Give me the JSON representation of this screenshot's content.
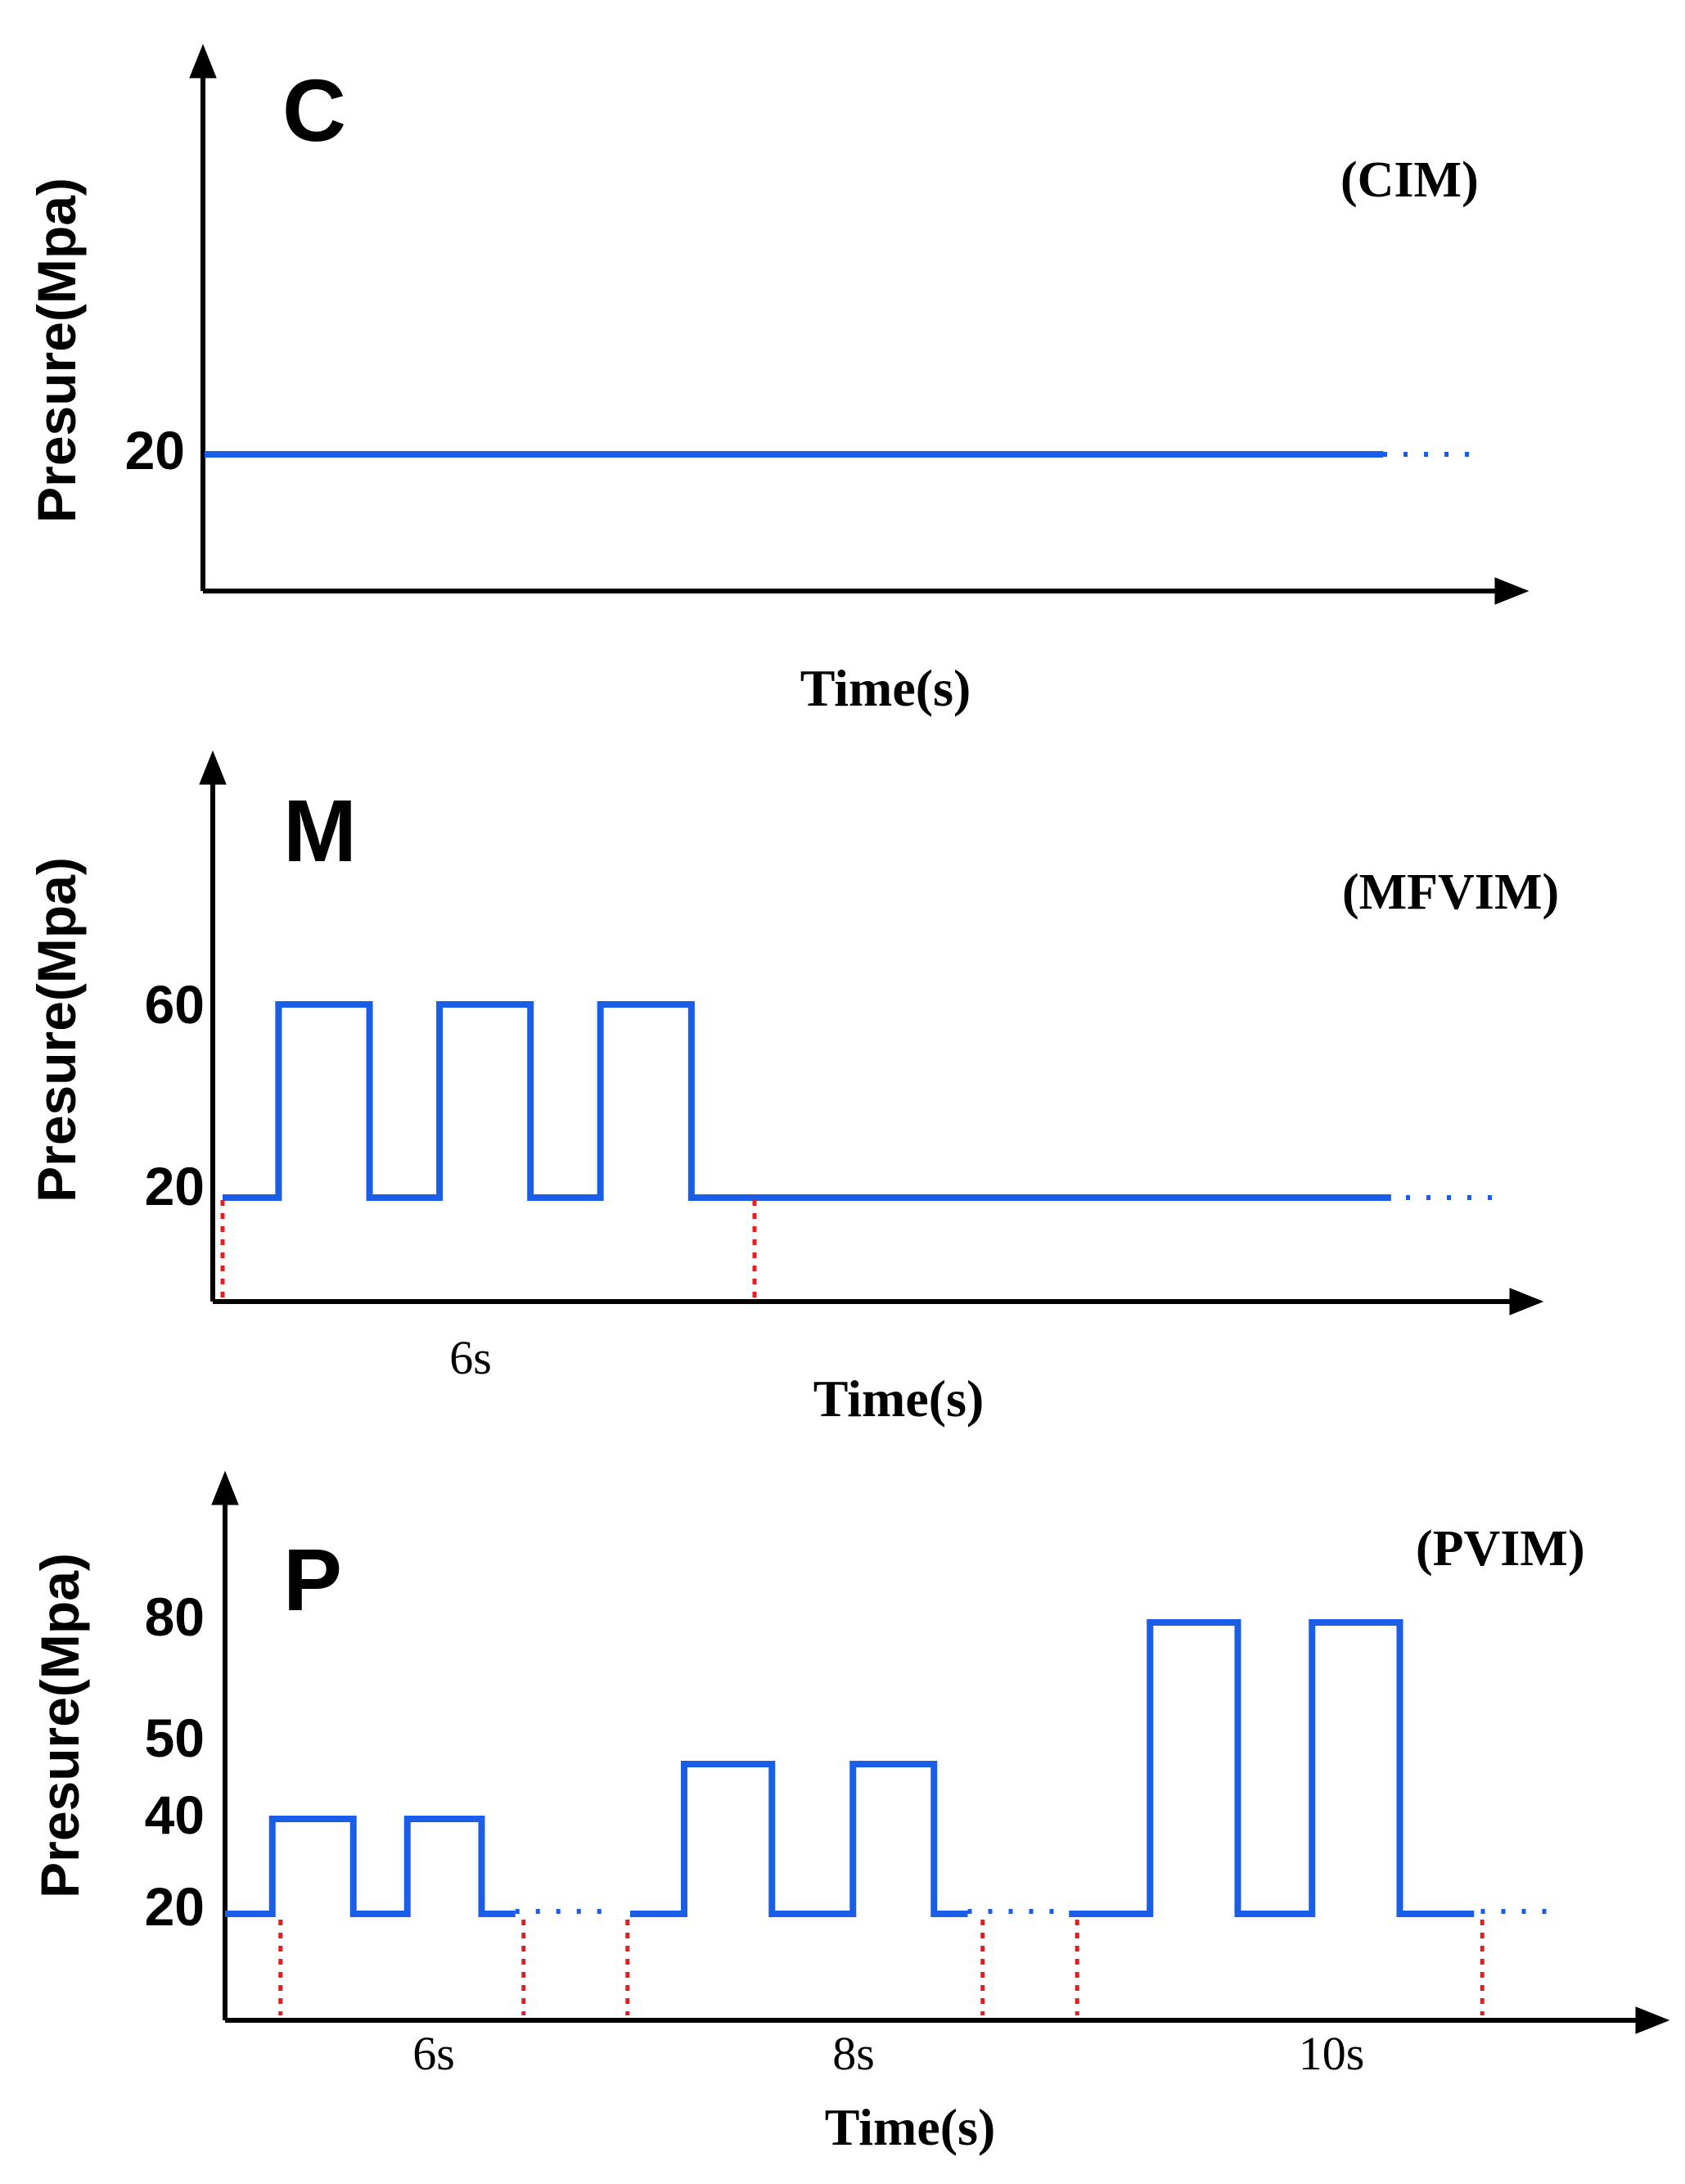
{
  "chart_data": [
    {
      "type": "line",
      "panel_letter": "C",
      "title": "(CIM)",
      "ylabel": "Presure(Mpa)",
      "xlabel": "Time(s)",
      "y_ticks": [
        "20"
      ],
      "steps": [
        [
          0,
          20
        ],
        [
          830,
          20
        ]
      ],
      "continuation": "dotted",
      "period_markers": [],
      "colors": {
        "signal": "#1a5ee8",
        "marker": "#e02020",
        "axis": "#000000"
      }
    },
    {
      "type": "line",
      "panel_letter": "M",
      "title": "(MFVIM)",
      "ylabel": "Presure(Mpa)",
      "xlabel": "Time(s)",
      "y_ticks": [
        "20",
        "60"
      ],
      "steps": [
        [
          0,
          20
        ],
        [
          40,
          20
        ],
        [
          40,
          60
        ],
        [
          105,
          60
        ],
        [
          105,
          20
        ],
        [
          155,
          20
        ],
        [
          155,
          60
        ],
        [
          220,
          60
        ],
        [
          220,
          20
        ],
        [
          270,
          20
        ],
        [
          270,
          60
        ],
        [
          335,
          60
        ],
        [
          335,
          20
        ],
        [
          835,
          20
        ]
      ],
      "continuation": "dotted",
      "period_markers": [
        5,
        380
      ],
      "period_labels": [
        {
          "text": "6s",
          "at": 180
        }
      ],
      "colors": {
        "signal": "#1a5ee8",
        "marker": "#e02020",
        "axis": "#000000"
      }
    },
    {
      "type": "line",
      "panel_letter": "P",
      "title": "(PVIM)",
      "ylabel": "Presure(Mpa)",
      "xlabel": "Time(s)",
      "y_ticks": [
        "20",
        "40",
        "50",
        "80"
      ],
      "segments": [
        [
          [
            0,
            20
          ],
          [
            35,
            20
          ],
          [
            35,
            40
          ],
          [
            95,
            40
          ],
          [
            95,
            20
          ],
          [
            135,
            20
          ],
          [
            135,
            40
          ],
          [
            190,
            40
          ],
          [
            190,
            20
          ],
          [
            215,
            20
          ]
        ],
        [
          [
            300,
            20
          ],
          [
            340,
            20
          ],
          [
            340,
            50
          ],
          [
            405,
            50
          ],
          [
            405,
            20
          ],
          [
            465,
            20
          ],
          [
            465,
            50
          ],
          [
            525,
            50
          ],
          [
            525,
            20
          ],
          [
            550,
            20
          ]
        ],
        [
          [
            625,
            20
          ],
          [
            685,
            20
          ],
          [
            685,
            80
          ],
          [
            750,
            80
          ],
          [
            750,
            20
          ],
          [
            805,
            20
          ],
          [
            805,
            80
          ],
          [
            870,
            80
          ],
          [
            870,
            20
          ],
          [
            925,
            20
          ]
        ]
      ],
      "dotted_gaps": [
        [
          215,
          285
        ],
        [
          550,
          620
        ],
        [
          930,
          990
        ]
      ],
      "period_markers": [
        35,
        215,
        292,
        555,
        625,
        925
      ],
      "period_labels": [
        {
          "text": "6s",
          "at": 150
        },
        {
          "text": "8s",
          "at": 450
        },
        {
          "text": "10s",
          "at": 795
        }
      ],
      "colors": {
        "signal": "#1a5ee8",
        "marker": "#e02020",
        "axis": "#000000"
      }
    }
  ]
}
